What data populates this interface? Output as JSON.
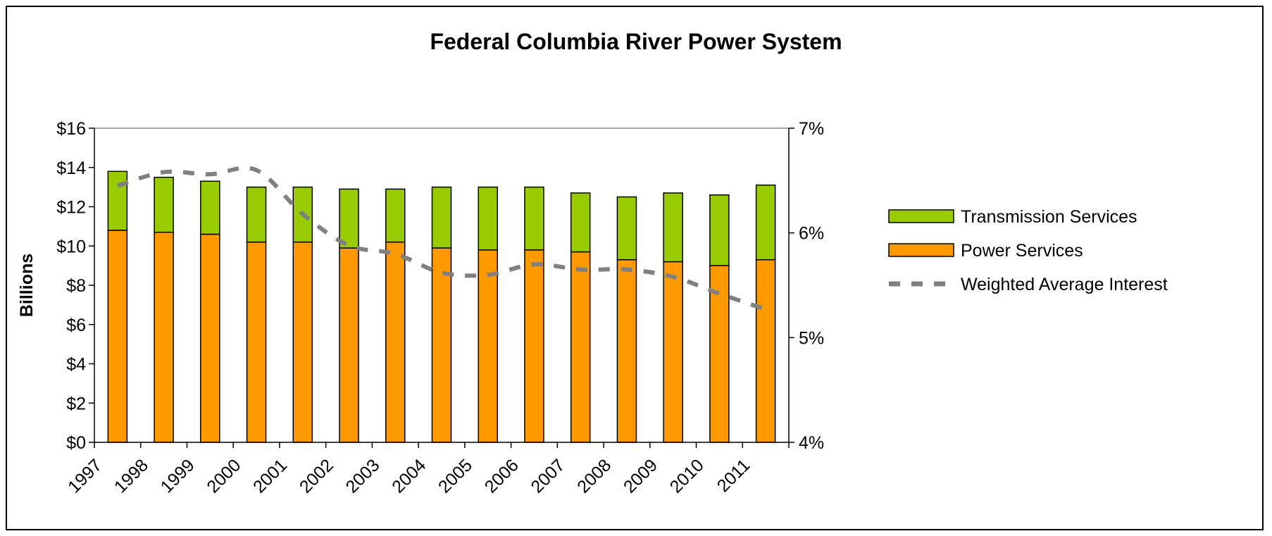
{
  "chart_data": {
    "type": "bar",
    "stacked": true,
    "title": "Federal Columbia River Power System",
    "ylabel": "Billions",
    "xlabel": "",
    "categories": [
      "1997",
      "1998",
      "1999",
      "2000",
      "2001",
      "2002",
      "2003",
      "2004",
      "2005",
      "2006",
      "2007",
      "2008",
      "2009",
      "2010",
      "2011"
    ],
    "series": [
      {
        "name": "Power Services",
        "type": "bar",
        "axis": "left",
        "color": "#ff9900",
        "values": [
          10.8,
          10.7,
          10.6,
          10.2,
          10.2,
          9.9,
          10.2,
          9.9,
          9.8,
          9.8,
          9.7,
          9.3,
          9.2,
          9.0,
          9.3
        ]
      },
      {
        "name": "Transmission Services",
        "type": "bar",
        "axis": "left",
        "color": "#99cc00",
        "values": [
          3.0,
          2.8,
          2.7,
          2.8,
          2.8,
          3.0,
          2.7,
          3.1,
          3.2,
          3.2,
          3.0,
          3.2,
          3.5,
          3.6,
          3.8
        ]
      },
      {
        "name": "Weighted Average Interest",
        "type": "line",
        "axis": "right",
        "color": "#808080",
        "dashed": true,
        "values": [
          6.45,
          6.58,
          6.56,
          6.6,
          6.18,
          5.88,
          5.8,
          5.62,
          5.6,
          5.7,
          5.65,
          5.65,
          5.58,
          5.42,
          5.27
        ]
      }
    ],
    "yleft": {
      "min": 0,
      "max": 16,
      "step": 2,
      "ticks": [
        "$0",
        "$2",
        "$4",
        "$6",
        "$8",
        "$10",
        "$12",
        "$14",
        "$16"
      ]
    },
    "yright": {
      "min": 4,
      "max": 7,
      "step": 1,
      "ticks": [
        "4%",
        "5%",
        "6%",
        "7%"
      ]
    },
    "legend": {
      "position": "right",
      "entries": [
        "Transmission Services",
        "Power Services",
        "Weighted Average Interest"
      ]
    },
    "grid": false
  }
}
